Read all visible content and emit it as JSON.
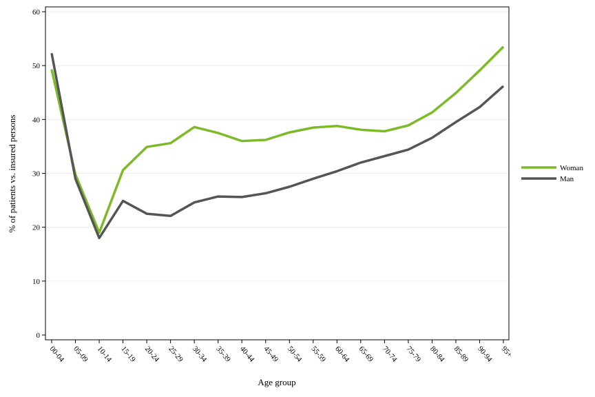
{
  "chart_data": {
    "type": "line",
    "xlabel": "Age group",
    "ylabel": "% of patients vs. insured persons",
    "categories": [
      "00-04",
      "05-09",
      "10-14",
      "15-19",
      "20-24",
      "25-29",
      "30-34",
      "35-39",
      "40-44",
      "45-49",
      "50-54",
      "55-59",
      "60-64",
      "65-69",
      "70-74",
      "75-79",
      "80-84",
      "85-89",
      "90-94",
      "95+"
    ],
    "ylim": [
      0,
      60
    ],
    "yticks": [
      0,
      10,
      20,
      30,
      40,
      50,
      60
    ],
    "grid": "horizontal",
    "legend_position": "right",
    "series": [
      {
        "name": "Woman",
        "color": "#7dba28",
        "values": [
          49.3,
          29.8,
          19.0,
          30.6,
          34.9,
          35.6,
          38.6,
          37.5,
          36.0,
          36.2,
          37.6,
          38.5,
          38.8,
          38.1,
          37.8,
          38.9,
          41.3,
          44.9,
          49.1,
          53.5
        ]
      },
      {
        "name": "Man",
        "color": "#555555",
        "values": [
          52.3,
          29.0,
          18.0,
          24.9,
          22.5,
          22.1,
          24.6,
          25.7,
          25.6,
          26.3,
          27.5,
          29.0,
          30.4,
          32.0,
          33.2,
          34.4,
          36.6,
          39.5,
          42.3,
          46.2
        ]
      }
    ]
  }
}
